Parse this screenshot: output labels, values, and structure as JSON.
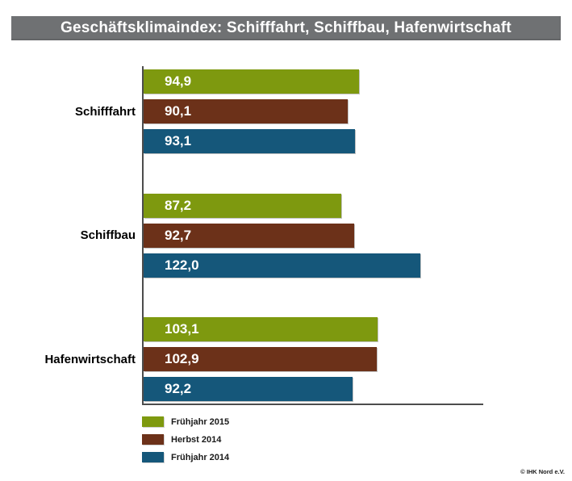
{
  "title": "Geschäftsklimaindex: Schifffahrt, Schiffbau, Hafenwirtschaft",
  "copyright": "© IHK Nord e.V.",
  "colors": {
    "title_bar_bg": "#6F7173",
    "title_text": "#FFFFFF",
    "axis": "#4D4D4D",
    "bar_value_text": "#FFFFFF"
  },
  "chart_data": {
    "type": "bar",
    "orientation": "horizontal",
    "title": "Geschäftsklimaindex: Schifffahrt, Schiffbau, Hafenwirtschaft",
    "categories": [
      "Schifffahrt",
      "Schiffbau",
      "Hafenwirtschaft"
    ],
    "series": [
      {
        "name": "Frühjahr 2015",
        "color": "#7E990F",
        "values": [
          94.9,
          87.2,
          103.1
        ],
        "labels": [
          "94,9",
          "87,2",
          "103,1"
        ]
      },
      {
        "name": "Herbst 2014",
        "color": "#6C3119",
        "values": [
          90.1,
          92.7,
          102.9
        ],
        "labels": [
          "90,1",
          "92,7",
          "102,9"
        ]
      },
      {
        "name": "Frühjahr 2014",
        "color": "#15577A",
        "values": [
          93.1,
          122.0,
          92.2
        ],
        "labels": [
          "93,1",
          "122,0",
          "92,2"
        ]
      }
    ],
    "xlim": [
      0,
      150
    ],
    "grid": false,
    "axis_tick_labels_visible": false,
    "value_labels": "inside-start",
    "legend_position": "bottom-left"
  }
}
